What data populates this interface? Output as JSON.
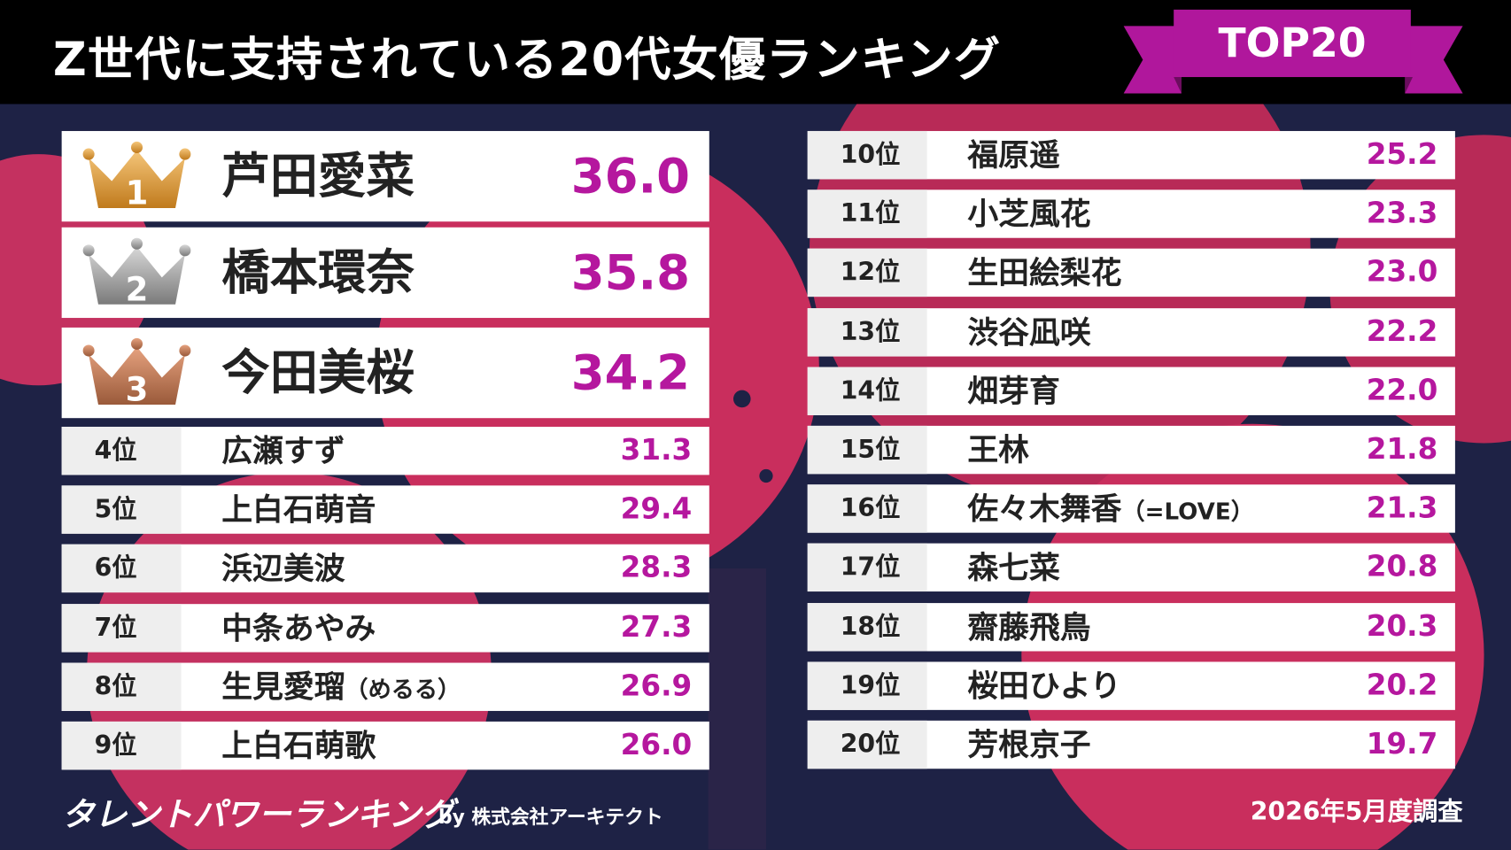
{
  "header": {
    "title": "Z世代に支持されている20代女優ランキング",
    "badge": "TOP20"
  },
  "top3": [
    {
      "rank": "1",
      "name": "芦田愛菜",
      "score": "36.0"
    },
    {
      "rank": "2",
      "name": "橋本環奈",
      "score": "35.8"
    },
    {
      "rank": "3",
      "name": "今田美桜",
      "score": "34.2"
    }
  ],
  "rows": [
    {
      "rank": "4位",
      "name": "広瀬すず",
      "score": "31.3"
    },
    {
      "rank": "5位",
      "name": "上白石萌音",
      "score": "29.4"
    },
    {
      "rank": "6位",
      "name": "浜辺美波",
      "score": "28.3"
    },
    {
      "rank": "7位",
      "name": "中条あやみ",
      "score": "27.3"
    },
    {
      "rank": "8位",
      "name": "生見愛瑠",
      "note": "（めるる）",
      "score": "26.9"
    },
    {
      "rank": "9位",
      "name": "上白石萌歌",
      "score": "26.0"
    },
    {
      "rank": "10位",
      "name": "福原遥",
      "score": "25.2"
    },
    {
      "rank": "11位",
      "name": "小芝風花",
      "score": "23.3"
    },
    {
      "rank": "12位",
      "name": "生田絵梨花",
      "score": "23.0"
    },
    {
      "rank": "13位",
      "name": "渋谷凪咲",
      "score": "22.2"
    },
    {
      "rank": "14位",
      "name": "畑芽育",
      "score": "22.0"
    },
    {
      "rank": "15位",
      "name": "王林",
      "score": "21.8"
    },
    {
      "rank": "16位",
      "name": "佐々木舞香",
      "note": "（=LOVE）",
      "score": "21.3"
    },
    {
      "rank": "17位",
      "name": "森七菜",
      "score": "20.8"
    },
    {
      "rank": "18位",
      "name": "齋藤飛鳥",
      "score": "20.3"
    },
    {
      "rank": "19位",
      "name": "桜田ひより",
      "score": "20.2"
    },
    {
      "rank": "20位",
      "name": "芳根京子",
      "score": "19.7"
    }
  ],
  "footer": {
    "brand": "タレントパワーランキング",
    "company": "by 株式会社アーキテクト",
    "date": "2026年5月度調査"
  }
}
